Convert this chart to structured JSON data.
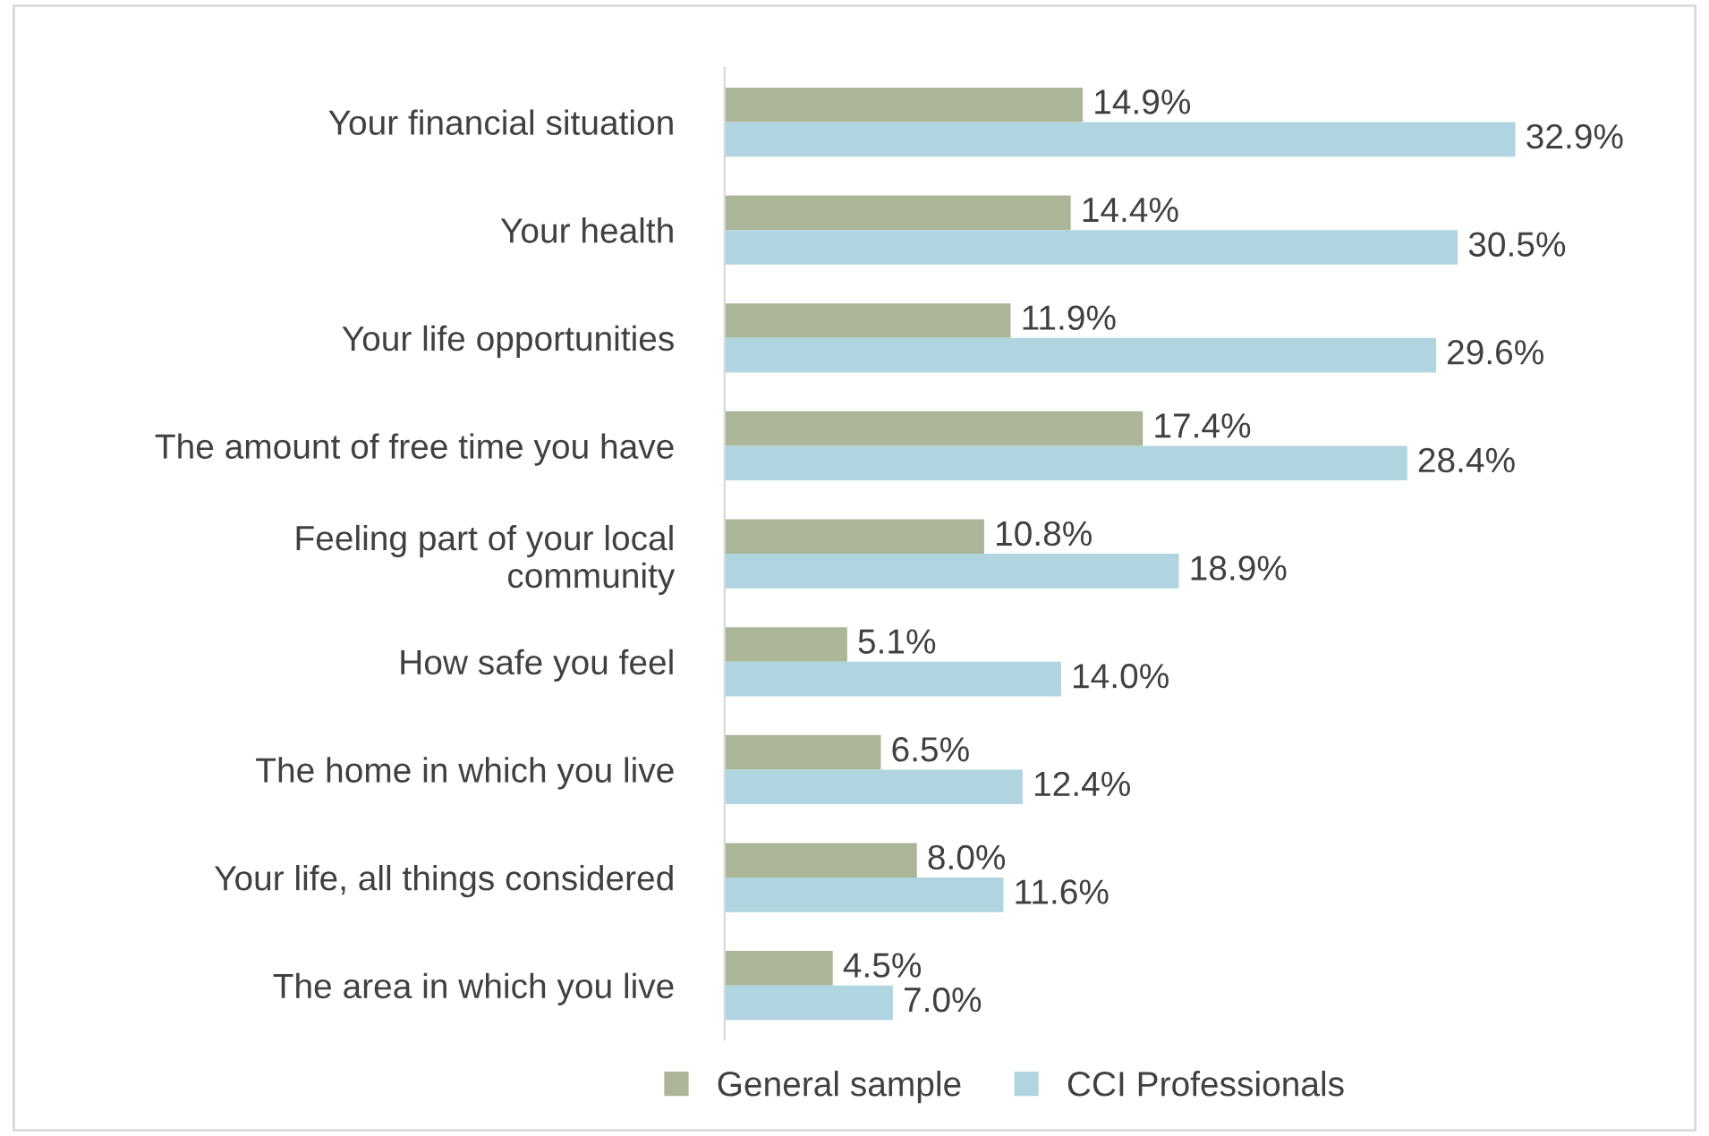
{
  "chart_data": {
    "type": "bar",
    "orientation": "horizontal",
    "categories": [
      "Your financial situation",
      "Your health",
      "Your life opportunities",
      "The amount of free time you have",
      "Feeling part of your local\ncommunity",
      "How safe you feel",
      "The home in which you live",
      "Your life, all things considered",
      "The area in which you live"
    ],
    "series": [
      {
        "name": "General sample",
        "color": "#abb598",
        "values": [
          14.9,
          14.4,
          11.9,
          17.4,
          10.8,
          5.1,
          6.5,
          8.0,
          4.5
        ],
        "value_labels": [
          "14.9%",
          "14.4%",
          "11.9%",
          "17.4%",
          "10.8%",
          "5.1%",
          "6.5%",
          "8.0%",
          "4.5%"
        ]
      },
      {
        "name": "CCI Professionals",
        "color": "#b0d5e0",
        "values": [
          32.9,
          30.5,
          29.6,
          28.4,
          18.9,
          14.0,
          12.4,
          11.6,
          7.0
        ],
        "value_labels": [
          "32.9%",
          "30.5%",
          "29.6%",
          "28.4%",
          "18.9%",
          "14.0%",
          "12.4%",
          "11.6%",
          "7.0%"
        ]
      }
    ],
    "legend": "bottom",
    "grid": false
  }
}
